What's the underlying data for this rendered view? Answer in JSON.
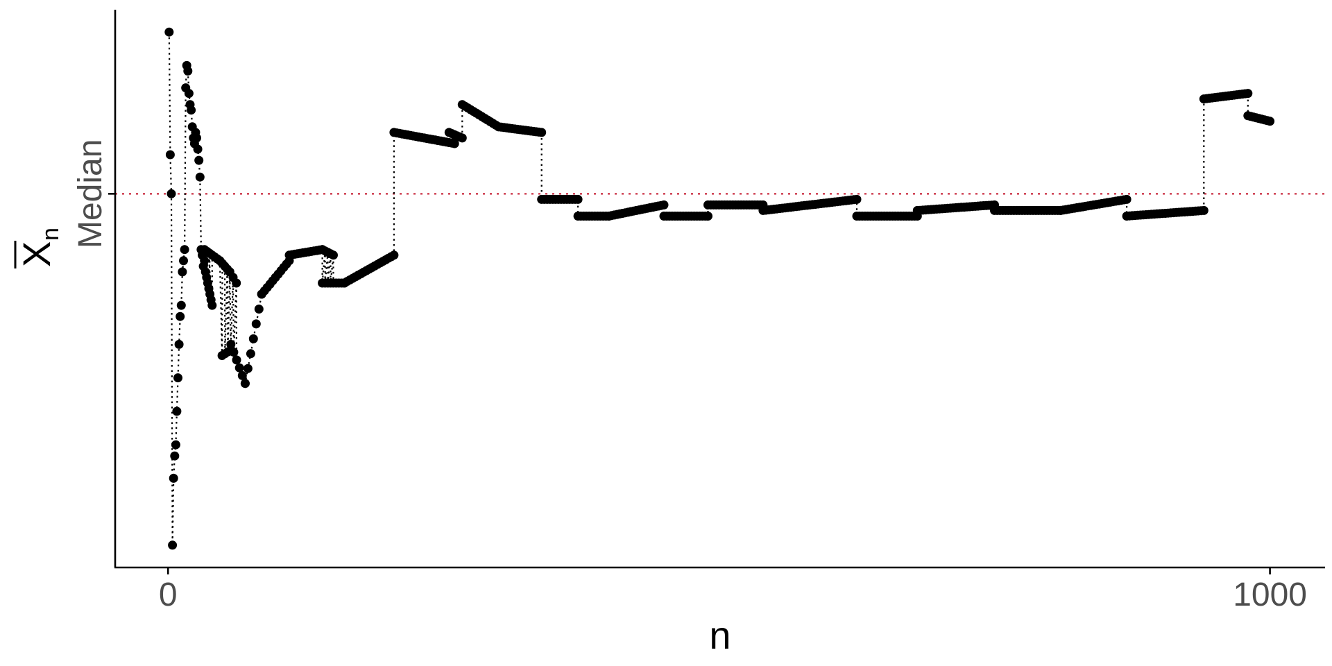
{
  "chart_data": {
    "type": "scatter",
    "title": "",
    "xlabel": "n",
    "ylabel": "X",
    "ylabel_subscript": "n",
    "ylabel_overline": true,
    "xlim": [
      -48,
      1050
    ],
    "ylim": [
      0,
      100
    ],
    "x_ticks": [
      0,
      1000
    ],
    "x_tick_labels": [
      "0",
      "1000"
    ],
    "y_ticks": [
      67
    ],
    "y_tick_labels": [
      "Median"
    ],
    "reference_line": {
      "y": 67,
      "label": "Median",
      "color": "#d1495b",
      "style": "dotted"
    },
    "grid": false,
    "legend": "none",
    "connector_style": "dotted",
    "point_color": "#000000",
    "series": [
      {
        "points": [
          [
            1,
            96
          ],
          [
            2,
            74
          ],
          [
            3,
            67
          ],
          [
            4,
            4
          ],
          [
            5,
            16
          ],
          [
            6,
            20
          ],
          [
            7,
            22
          ],
          [
            8,
            28
          ],
          [
            9,
            34
          ],
          [
            10,
            40
          ],
          [
            11,
            45
          ],
          [
            12,
            47
          ],
          [
            13,
            53
          ],
          [
            14,
            55
          ],
          [
            15,
            57
          ],
          [
            16,
            86
          ],
          [
            17,
            90
          ],
          [
            18,
            89
          ],
          [
            19,
            85
          ],
          [
            20,
            83
          ],
          [
            21,
            82
          ],
          [
            22,
            79
          ],
          [
            23,
            77
          ],
          [
            24,
            76
          ],
          [
            25,
            78
          ],
          [
            26,
            77
          ],
          [
            27,
            75
          ],
          [
            28,
            73
          ],
          [
            29,
            70
          ],
          [
            30,
            57
          ],
          [
            31,
            56
          ],
          [
            32,
            54
          ],
          [
            33,
            55
          ],
          [
            34,
            53
          ],
          [
            35,
            52
          ],
          [
            36,
            51
          ],
          [
            37,
            50
          ],
          [
            38,
            49
          ],
          [
            39,
            48
          ],
          [
            40,
            47
          ]
        ],
        "segments": [
          {
            "x": [
              33,
              47
            ],
            "y": [
              57,
              55
            ]
          },
          {
            "x": [
              47,
              56
            ],
            "y": [
              55,
              53
            ]
          },
          {
            "x": [
              56,
              62
            ],
            "y": [
              53,
              51
            ]
          },
          {
            "x": [
              49,
              57
            ],
            "y": [
              38,
              39
            ]
          },
          {
            "x": [
              57,
              70
            ],
            "y": [
              40,
              33
            ]
          },
          {
            "x": [
              70,
              85
            ],
            "y": [
              33,
              49
            ]
          },
          {
            "x": [
              85,
              110
            ],
            "y": [
              49,
              55
            ]
          },
          {
            "x": [
              110,
              140
            ],
            "y": [
              56,
              57
            ]
          },
          {
            "x": [
              140,
              150
            ],
            "y": [
              57,
              56
            ]
          },
          {
            "x": [
              140,
              160
            ],
            "y": [
              51,
              51
            ]
          },
          {
            "x": [
              160,
              205
            ],
            "y": [
              51,
              56
            ]
          },
          {
            "x": [
              205,
              260
            ],
            "y": [
              78,
              76
            ]
          },
          {
            "x": [
              255,
              267
            ],
            "y": [
              78,
              77
            ]
          },
          {
            "x": [
              267,
              300
            ],
            "y": [
              83,
              79
            ]
          },
          {
            "x": [
              300,
              339
            ],
            "y": [
              79,
              78
            ]
          },
          {
            "x": [
              339,
              372
            ],
            "y": [
              66,
              66
            ]
          },
          {
            "x": [
              372,
              400
            ],
            "y": [
              63,
              63
            ]
          },
          {
            "x": [
              400,
              450
            ],
            "y": [
              63,
              65
            ]
          },
          {
            "x": [
              450,
              490
            ],
            "y": [
              63,
              63
            ]
          },
          {
            "x": [
              490,
              540
            ],
            "y": [
              65,
              65
            ]
          },
          {
            "x": [
              540,
              625
            ],
            "y": [
              64,
              66
            ]
          },
          {
            "x": [
              625,
              680
            ],
            "y": [
              63,
              63
            ]
          },
          {
            "x": [
              680,
              750
            ],
            "y": [
              64,
              65
            ]
          },
          {
            "x": [
              750,
              810
            ],
            "y": [
              64,
              64
            ]
          },
          {
            "x": [
              810,
              870
            ],
            "y": [
              64,
              66
            ]
          },
          {
            "x": [
              870,
              940
            ],
            "y": [
              63,
              64
            ]
          },
          {
            "x": [
              940,
              980
            ],
            "y": [
              84,
              85
            ]
          },
          {
            "x": [
              980,
              1000
            ],
            "y": [
              81,
              80
            ]
          }
        ]
      }
    ]
  }
}
